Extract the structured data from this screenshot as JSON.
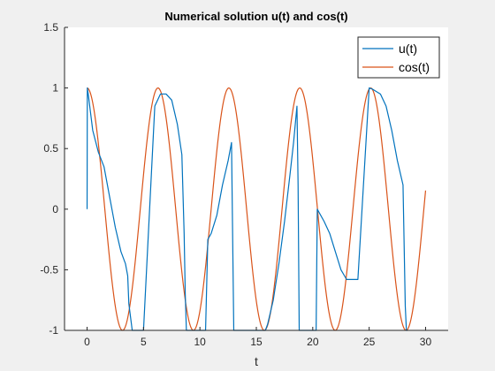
{
  "chart_data": {
    "type": "line",
    "title": "Numerical solution u(t) and cos(t)",
    "xlabel": "t",
    "ylabel": "",
    "xlim": [
      -2,
      32
    ],
    "ylim": [
      -1,
      1.5
    ],
    "xticks": [
      0,
      5,
      10,
      15,
      20,
      25,
      30
    ],
    "yticks": [
      -1,
      -0.5,
      0,
      0.5,
      1,
      1.5
    ],
    "xtick_labels": [
      "0",
      "5",
      "10",
      "15",
      "20",
      "25",
      "30"
    ],
    "ytick_labels": [
      "-1",
      "-0.5",
      "0",
      "0.5",
      "1",
      "1.5"
    ],
    "grid": false,
    "legend_position": "top-right",
    "series": [
      {
        "name": "u(t)",
        "color": "#0072BD",
        "x": [
          0,
          0.02,
          0.1,
          0.5,
          1.0,
          1.5,
          2.0,
          2.5,
          3.0,
          3.4,
          3.6,
          3.7,
          4.0,
          5.0,
          6.0,
          6.5,
          7.0,
          7.5,
          8.0,
          8.4,
          8.6,
          8.7,
          8.8,
          9.0,
          10.0,
          10.5,
          10.7,
          11.0,
          11.5,
          12.0,
          12.5,
          12.8,
          13.0,
          14.0,
          15.0,
          15.8,
          16.0,
          16.5,
          17.0,
          17.5,
          18.0,
          18.3,
          18.6,
          18.7,
          18.8,
          19.0,
          20.0,
          20.3,
          20.4,
          21.0,
          21.5,
          22.0,
          22.5,
          23.0,
          24.0,
          25.0,
          25.3,
          26.0,
          26.5,
          27.0,
          27.5,
          28.0,
          28.2,
          28.3,
          28.4
        ],
        "y": [
          0,
          1.0,
          0.95,
          0.65,
          0.47,
          0.35,
          0.1,
          -0.15,
          -0.35,
          -0.45,
          -0.55,
          -0.78,
          -1.0,
          -1.0,
          0.85,
          0.95,
          0.95,
          0.9,
          0.7,
          0.45,
          -0.2,
          -0.7,
          -1.0,
          -1.0,
          -1.0,
          -1.0,
          -0.25,
          -0.2,
          -0.05,
          0.2,
          0.4,
          0.55,
          -1.0,
          -1.0,
          -1.0,
          -1.0,
          -0.95,
          -0.75,
          -0.45,
          -0.1,
          0.3,
          0.55,
          0.85,
          0.2,
          -1.0,
          -1.0,
          -1.0,
          -1.0,
          0.0,
          -0.1,
          -0.2,
          -0.35,
          -0.5,
          -0.58,
          -0.58,
          1.0,
          0.99,
          0.95,
          0.85,
          0.65,
          0.4,
          0.2,
          -0.8,
          -1.0,
          -1.0
        ]
      },
      {
        "name": "cos(t)",
        "color": "#D95319",
        "function": "cos",
        "x_range": [
          0,
          30
        ]
      }
    ]
  }
}
